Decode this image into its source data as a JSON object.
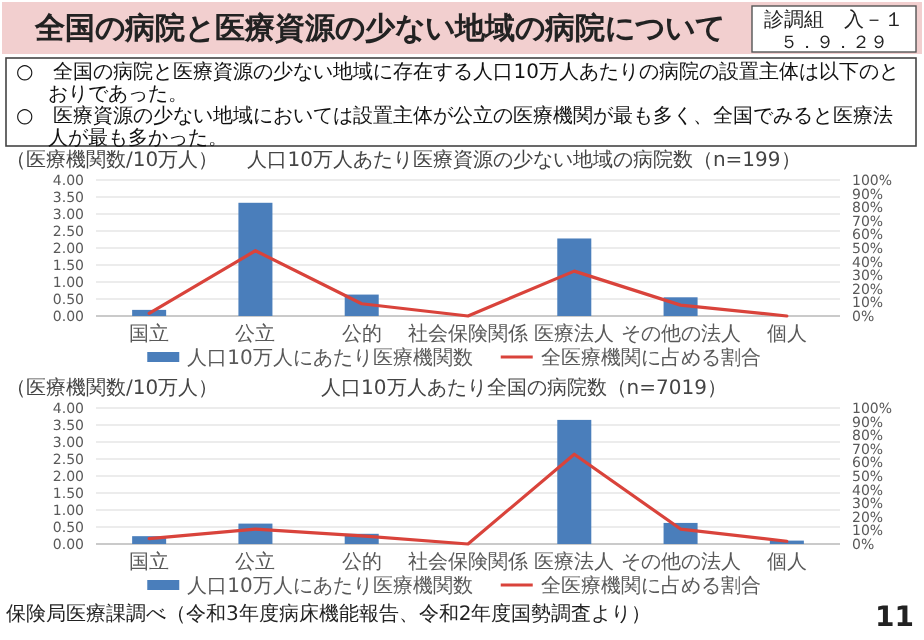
{
  "chart_data": [
    {
      "type": "other",
      "title": "全国の病院と医療資源の少ない地域の病院について",
      "annotations": [
        "診調組　入－１",
        "５．９．２９",
        "○　全国の病院と医療資源の少ない地域に存在する人口10万人あたりの病院の設置主体は以下のとおりであった。",
        "○　医療資源の少ない地域においては設置主体が公立の医療機関が最も多く、全国でみると医療法人が最も多かった。"
      ]
    },
    {
      "type": "bar",
      "title": "人口10万人あたり医療資源の少ない地域の病院数（n=199）",
      "ylabel": "（医療機関数/10万人）",
      "categories": [
        "国立",
        "公立",
        "公的",
        "社会保険関係",
        "医療法人",
        "その他の法人",
        "個人"
      ],
      "series": [
        {
          "name": "人口10万人にあたり医療機関数",
          "type": "bar",
          "color": "#4a7ebb",
          "values": [
            0.18,
            3.33,
            0.63,
            0,
            2.28,
            0.55,
            0
          ]
        },
        {
          "name": "全医療機関に占める割合",
          "type": "line",
          "axis": "y2",
          "color": "#d9433b",
          "values": [
            2,
            48,
            9,
            0,
            33,
            8,
            0
          ]
        }
      ],
      "ylim": [
        0,
        4
      ],
      "yticks": [
        {
          "value": 0,
          "label": "0.00"
        },
        {
          "value": 0.5,
          "label": "0.50"
        },
        {
          "value": 1,
          "label": "1.00"
        },
        {
          "value": 1.5,
          "label": "1.50"
        },
        {
          "value": 2,
          "label": "2.00"
        },
        {
          "value": 2.5,
          "label": "2.50"
        },
        {
          "value": 3,
          "label": "3.00"
        },
        {
          "value": 3.5,
          "label": "3.50"
        },
        {
          "value": 4,
          "label": "4.00"
        }
      ],
      "y2lim": [
        0,
        100
      ],
      "y2ticks": [
        {
          "value": 0,
          "label": "0%"
        },
        {
          "value": 10,
          "label": "10%"
        },
        {
          "value": 20,
          "label": "20%"
        },
        {
          "value": 30,
          "label": "30%"
        },
        {
          "value": 40,
          "label": "40%"
        },
        {
          "value": 50,
          "label": "50%"
        },
        {
          "value": 60,
          "label": "60%"
        },
        {
          "value": 70,
          "label": "70%"
        },
        {
          "value": 80,
          "label": "80%"
        },
        {
          "value": 90,
          "label": "90%"
        },
        {
          "value": 100,
          "label": "100%"
        }
      ],
      "grid": "y",
      "legend": "bottom"
    },
    {
      "type": "bar",
      "title": "人口10万人あたり全国の病院数（n=7019）",
      "ylabel": "（医療機関数/10万人）",
      "categories": [
        "国立",
        "公立",
        "公的",
        "社会保険関係",
        "医療法人",
        "その他の法人",
        "個人"
      ],
      "series": [
        {
          "name": "人口10万人にあたり医療機関数",
          "type": "bar",
          "color": "#4a7ebb",
          "values": [
            0.23,
            0.6,
            0.3,
            null,
            3.65,
            0.62,
            0.1
          ]
        },
        {
          "name": "全医療機関に占める割合",
          "type": "line",
          "axis": "y2",
          "color": "#d9433b",
          "values": [
            4,
            11,
            6,
            0,
            66,
            11,
            2
          ]
        }
      ],
      "ylim": [
        0,
        4
      ],
      "yticks": [
        {
          "value": 0,
          "label": "0.00"
        },
        {
          "value": 0.5,
          "label": "0.50"
        },
        {
          "value": 1,
          "label": "1.00"
        },
        {
          "value": 1.5,
          "label": "1.50"
        },
        {
          "value": 2,
          "label": "2.00"
        },
        {
          "value": 2.5,
          "label": "2.50"
        },
        {
          "value": 3,
          "label": "3.00"
        },
        {
          "value": 3.5,
          "label": "3.50"
        },
        {
          "value": 4,
          "label": "4.00"
        }
      ],
      "y2lim": [
        0,
        100
      ],
      "y2ticks": [
        {
          "value": 0,
          "label": "0%"
        },
        {
          "value": 10,
          "label": "10%"
        },
        {
          "value": 20,
          "label": "20%"
        },
        {
          "value": 30,
          "label": "30%"
        },
        {
          "value": 40,
          "label": "40%"
        },
        {
          "value": 50,
          "label": "50%"
        },
        {
          "value": 60,
          "label": "60%"
        },
        {
          "value": 70,
          "label": "70%"
        },
        {
          "value": 80,
          "label": "80%"
        },
        {
          "value": 90,
          "label": "90%"
        },
        {
          "value": 100,
          "label": "100%"
        }
      ],
      "grid": "y",
      "legend": "bottom",
      "annotations": [
        "保険局医療課調べ（令和3年度病床機能報告、令和2年度国勢調査より）",
        "11"
      ]
    }
  ]
}
